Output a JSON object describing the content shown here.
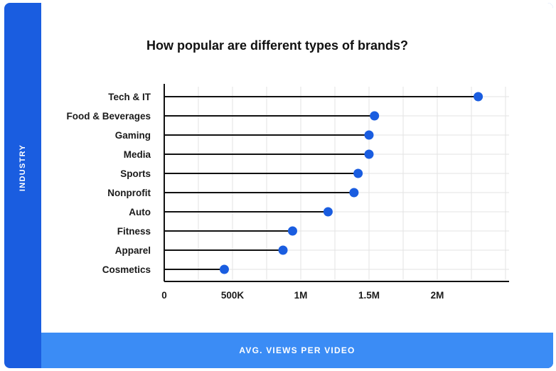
{
  "chart_data": {
    "type": "lollipop",
    "title": "How popular are different types of brands?",
    "xlabel": "AVG. VIEWS PER VIDEO",
    "ylabel": "INDUSTRY",
    "xlim": [
      0,
      2500000
    ],
    "xticks": [
      0,
      500000,
      1000000,
      1500000,
      2000000
    ],
    "xtick_labels": [
      "0",
      "500K",
      "1M",
      "1.5M",
      "2M"
    ],
    "categories": [
      "Tech & IT",
      "Food & Beverages",
      "Gaming",
      "Media",
      "Sports",
      "Nonprofit",
      "Auto",
      "Fitness",
      "Apparel",
      "Cosmetics"
    ],
    "values": [
      2300000,
      1540000,
      1500000,
      1500000,
      1420000,
      1390000,
      1200000,
      940000,
      870000,
      440000
    ],
    "grid": true,
    "legend": "none"
  },
  "colors": {
    "frame": "#1a5de0",
    "xlabel_bar": "#3b8cf5",
    "dot": "#1a5de0",
    "stem": "#111111",
    "grid": "#e3e3e3"
  }
}
